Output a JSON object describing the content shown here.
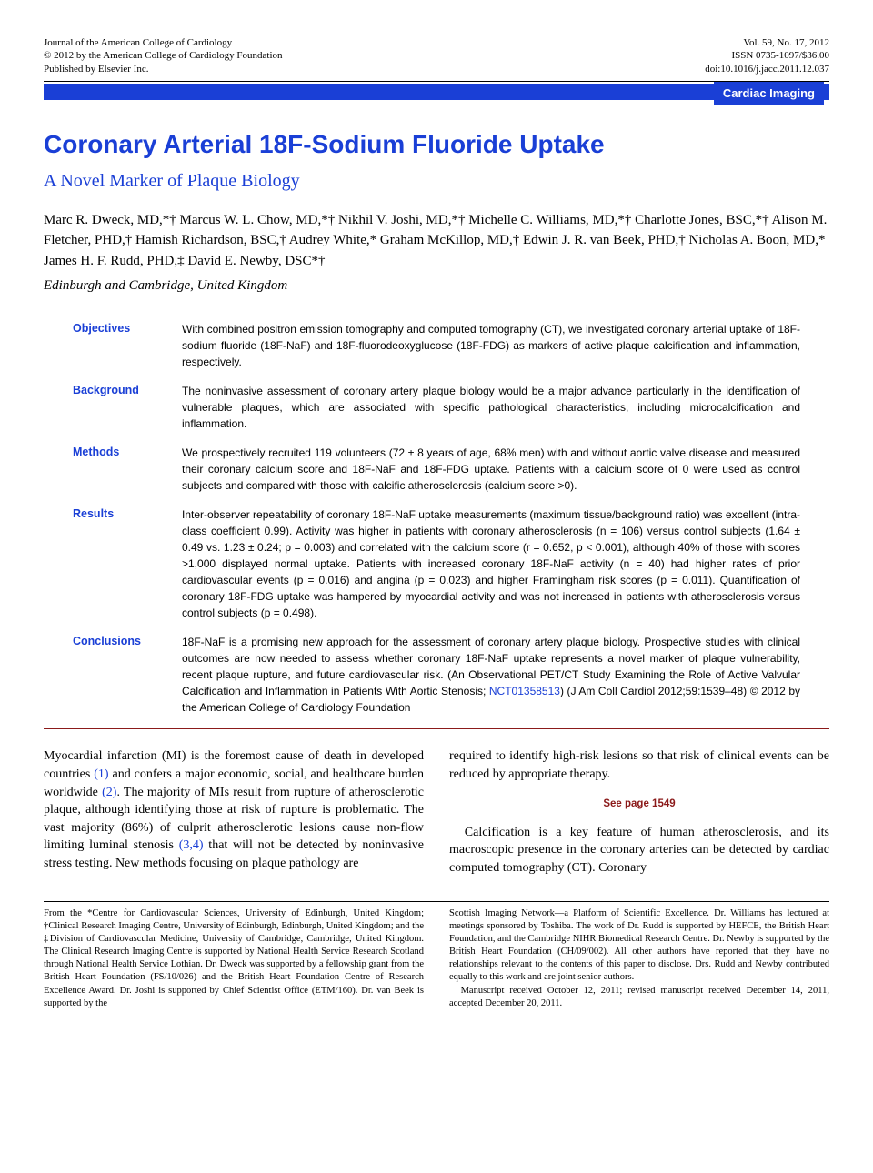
{
  "header": {
    "left": [
      "Journal of the American College of Cardiology",
      "© 2012 by the American College of Cardiology Foundation",
      "Published by Elsevier Inc."
    ],
    "right": [
      "Vol. 59, No. 17, 2012",
      "ISSN 0735-1097/$36.00",
      "doi:10.1016/j.jacc.2011.12.037"
    ]
  },
  "category_label": "Cardiac Imaging",
  "title": "Coronary Arterial 18F-Sodium Fluoride Uptake",
  "subtitle": "A Novel Marker of Plaque Biology",
  "authors": "Marc R. Dweck, MD,*† Marcus W. L. Chow, MD,*† Nikhil V. Joshi, MD,*† Michelle C. Williams, MD,*† Charlotte Jones, BSC,*† Alison M. Fletcher, PHD,† Hamish Richardson, BSC,† Audrey White,* Graham McKillop, MD,† Edwin J. R. van Beek, PHD,† Nicholas A. Boon, MD,* James H. F. Rudd, PHD,‡ David E. Newby, DSC*†",
  "affiliation": "Edinburgh and Cambridge, United Kingdom",
  "abstract": [
    {
      "label": "Objectives",
      "text": "With combined positron emission tomography and computed tomography (CT), we investigated coronary arterial uptake of 18F-sodium fluoride (18F-NaF) and 18F-fluorodeoxyglucose (18F-FDG) as markers of active plaque calcification and inflammation, respectively."
    },
    {
      "label": "Background",
      "text": "The noninvasive assessment of coronary artery plaque biology would be a major advance particularly in the identification of vulnerable plaques, which are associated with specific pathological characteristics, including microcalcification and inflammation."
    },
    {
      "label": "Methods",
      "text": "We prospectively recruited 119 volunteers (72 ± 8 years of age, 68% men) with and without aortic valve disease and measured their coronary calcium score and 18F-NaF and 18F-FDG uptake. Patients with a calcium score of 0 were used as control subjects and compared with those with calcific atherosclerosis (calcium score >0)."
    },
    {
      "label": "Results",
      "text": "Inter-observer repeatability of coronary 18F-NaF uptake measurements (maximum tissue/background ratio) was excellent (intra-class coefficient 0.99). Activity was higher in patients with coronary atherosclerosis (n = 106) versus control subjects (1.64 ± 0.49 vs. 1.23 ± 0.24; p = 0.003) and correlated with the calcium score (r = 0.652, p < 0.001), although 40% of those with scores >1,000 displayed normal uptake. Patients with increased coronary 18F-NaF activity (n = 40) had higher rates of prior cardiovascular events (p = 0.016) and angina (p = 0.023) and higher Framingham risk scores (p = 0.011). Quantification of coronary 18F-FDG uptake was hampered by myocardial activity and was not increased in patients with atherosclerosis versus control subjects (p = 0.498)."
    },
    {
      "label": "Conclusions",
      "text_pre": "18F-NaF is a promising new approach for the assessment of coronary artery plaque biology. Prospective studies with clinical outcomes are now needed to assess whether coronary 18F-NaF uptake represents a novel marker of plaque vulnerability, recent plaque rupture, and future cardiovascular risk. (An Observational PET/CT Study Examining the Role of Active Valvular Calcification and Inflammation in Patients With Aortic Stenosis; ",
      "link": "NCT01358513",
      "text_post": ")   (J Am Coll Cardiol 2012;59:1539–48) © 2012 by the American College of Cardiology Foundation"
    }
  ],
  "body": {
    "left_pre": "Myocardial infarction (MI) is the foremost cause of death in developed countries ",
    "cite1": "(1)",
    "left_mid1": " and confers a major economic, social, and healthcare burden worldwide ",
    "cite2": "(2)",
    "left_mid2": ". The majority of MIs result from rupture of atherosclerotic plaque, although identifying those at risk of rupture is problematic. The vast majority (86%) of culprit atherosclerotic lesions cause non-flow limiting luminal stenosis ",
    "cite34": "(3,4)",
    "left_post": " that will not be detected by noninvasive stress testing. New methods focusing on plaque pathology are",
    "right_p1": "required to identify high-risk lesions so that risk of clinical events can be reduced by appropriate therapy.",
    "see_page": "See page 1549",
    "right_p2": "Calcification is a key feature of human atherosclerosis, and its macroscopic presence in the coronary arteries can be detected by cardiac computed tomography (CT). Coronary"
  },
  "footnotes": {
    "left": "From the *Centre for Cardiovascular Sciences, University of Edinburgh, United Kingdom; †Clinical Research Imaging Centre, University of Edinburgh, Edinburgh, United Kingdom; and the ‡Division of Cardiovascular Medicine, University of Cambridge, Cambridge, United Kingdom. The Clinical Research Imaging Centre is supported by National Health Service Research Scotland through National Health Service Lothian. Dr. Dweck was supported by a fellowship grant from the British Heart Foundation (FS/10/026) and the British Heart Foundation Centre of Research Excellence Award. Dr. Joshi is supported by Chief Scientist Office (ETM/160). Dr. van Beek is supported by the",
    "right_p1": "Scottish Imaging Network—a Platform of Scientific Excellence. Dr. Williams has lectured at meetings sponsored by Toshiba. The work of Dr. Rudd is supported by HEFCE, the British Heart Foundation, and the Cambridge NIHR Biomedical Research Centre. Dr. Newby is supported by the British Heart Foundation (CH/09/002). All other authors have reported that they have no relationships relevant to the contents of this paper to disclose. Drs. Rudd and Newby contributed equally to this work and are joint senior authors.",
    "right_p2": "Manuscript received October 12, 2011; revised manuscript received December 14, 2011, accepted December 20, 2011."
  },
  "colors": {
    "blue": "#1a3fd6",
    "maroon": "#8b1a1a",
    "black": "#000000",
    "white": "#ffffff"
  }
}
